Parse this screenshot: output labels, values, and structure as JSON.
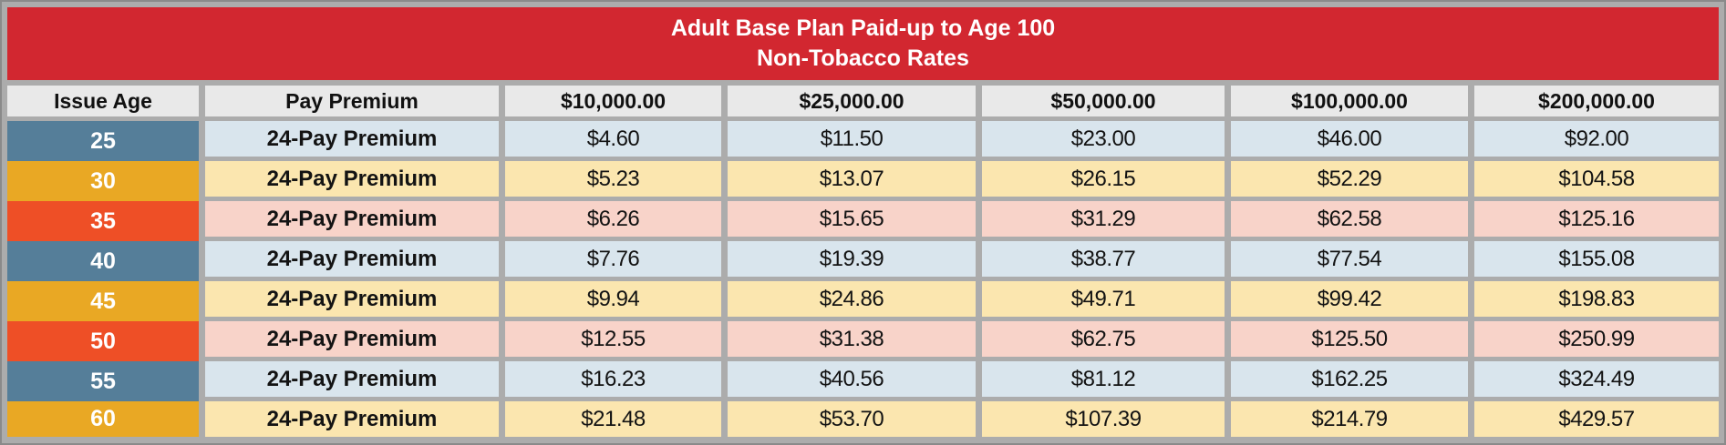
{
  "title": {
    "line1": "Adult Base Plan Paid-up to Age 100",
    "line2": "Non-Tobacco Rates"
  },
  "table": {
    "columns": [
      "Issue Age",
      "Pay Premium",
      "$10,000.00",
      "$25,000.00",
      "$50,000.00",
      "$100,000.00",
      "$200,000.00"
    ],
    "rows": [
      {
        "age": "25",
        "premium_label": "24-Pay Premium",
        "values": [
          "$4.60",
          "$11.50",
          "$23.00",
          "$46.00",
          "$92.00"
        ],
        "theme": "blue"
      },
      {
        "age": "30",
        "premium_label": "24-Pay Premium",
        "values": [
          "$5.23",
          "$13.07",
          "$26.15",
          "$52.29",
          "$104.58"
        ],
        "theme": "amber"
      },
      {
        "age": "35",
        "premium_label": "24-Pay Premium",
        "values": [
          "$6.26",
          "$15.65",
          "$31.29",
          "$62.58",
          "$125.16"
        ],
        "theme": "red"
      },
      {
        "age": "40",
        "premium_label": "24-Pay Premium",
        "values": [
          "$7.76",
          "$19.39",
          "$38.77",
          "$77.54",
          "$155.08"
        ],
        "theme": "blue"
      },
      {
        "age": "45",
        "premium_label": "24-Pay Premium",
        "values": [
          "$9.94",
          "$24.86",
          "$49.71",
          "$99.42",
          "$198.83"
        ],
        "theme": "amber"
      },
      {
        "age": "50",
        "premium_label": "24-Pay Premium",
        "values": [
          "$12.55",
          "$31.38",
          "$62.75",
          "$125.50",
          "$250.99"
        ],
        "theme": "red"
      },
      {
        "age": "55",
        "premium_label": "24-Pay Premium",
        "values": [
          "$16.23",
          "$40.56",
          "$81.12",
          "$162.25",
          "$324.49"
        ],
        "theme": "blue"
      },
      {
        "age": "60",
        "premium_label": "24-Pay Premium",
        "values": [
          "$21.48",
          "$53.70",
          "$107.39",
          "$214.79",
          "$429.57"
        ],
        "theme": "amber"
      }
    ]
  },
  "colors": {
    "banner_bg": "#d22730",
    "banner_text": "#ffffff",
    "header_bg": "#e9e9e9",
    "grid_bg": "#acacac",
    "outer_border": "#8a8a8a",
    "themes": {
      "blue": {
        "age_bg": "#557e99",
        "row_bg": "#d9e5ed"
      },
      "amber": {
        "age_bg": "#e9a824",
        "row_bg": "#fbe6af"
      },
      "red": {
        "age_bg": "#ee4f26",
        "row_bg": "#f8d3c9"
      }
    }
  }
}
